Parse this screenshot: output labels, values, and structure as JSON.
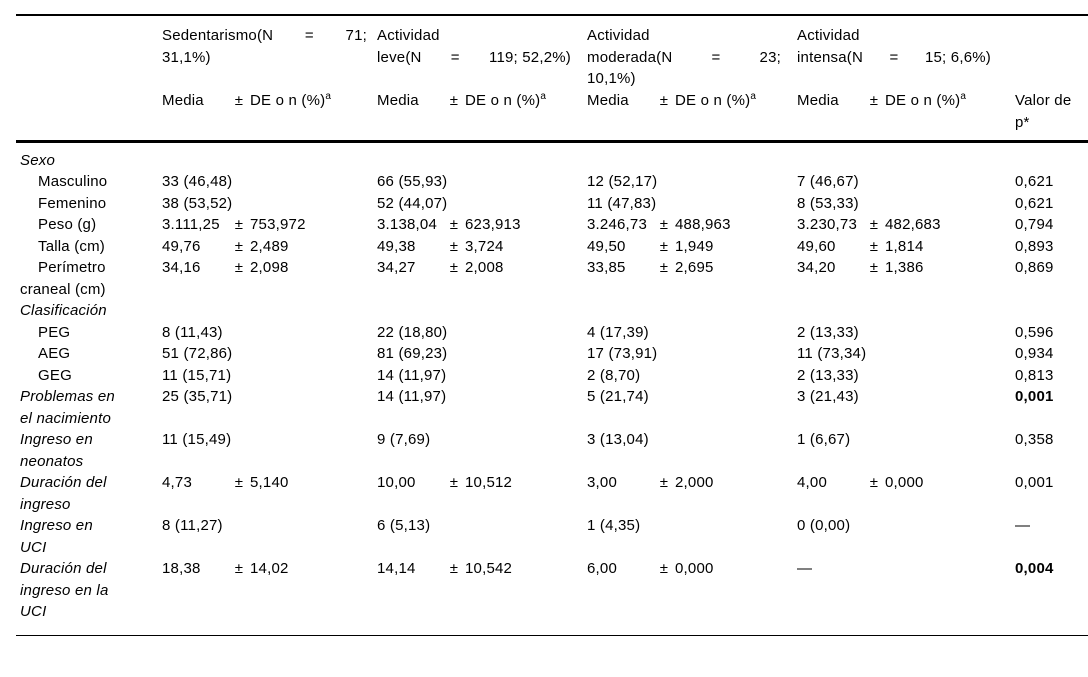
{
  "table": {
    "groups": [
      {
        "name": "sedentarismo",
        "lines": [
          [
            "Sedentarismo(N",
            "=",
            "71;"
          ],
          [
            "31,1%)"
          ]
        ]
      },
      {
        "name": "actividad-leve",
        "lines": [
          [
            "Actividad"
          ],
          [
            "leve(N",
            "=",
            "119; 52,2%)"
          ]
        ]
      },
      {
        "name": "actividad-moderada",
        "lines": [
          [
            "Actividad"
          ],
          [
            "moderada(N",
            "=",
            "23;"
          ],
          [
            "10,1%)"
          ]
        ]
      },
      {
        "name": "actividad-intensa",
        "lines": [
          [
            "Actividad"
          ],
          [
            "intensa(N",
            "=",
            "15; 6,6%)"
          ]
        ]
      }
    ],
    "measure_header": {
      "mean": "Media",
      "pm": "±",
      "rest": "DE o n (%)",
      "sup": "a"
    },
    "p_header": {
      "line1": "Valor de",
      "line2": "p*"
    },
    "rows": [
      {
        "type": "section",
        "label": "Sexo"
      },
      {
        "type": "data",
        "label": "Masculino",
        "indent": true,
        "cells": [
          {
            "n": "33 (46,48)"
          },
          {
            "n": "66 (55,93)"
          },
          {
            "n": "12 (52,17)"
          },
          {
            "n": "7 (46,67)"
          }
        ],
        "p": "0,621"
      },
      {
        "type": "data",
        "label": "Femenino",
        "indent": true,
        "cells": [
          {
            "n": "38 (53,52)"
          },
          {
            "n": "52 (44,07)"
          },
          {
            "n": "11 (47,83)"
          },
          {
            "n": "8 (53,33)"
          }
        ],
        "p": "0,621"
      },
      {
        "type": "data",
        "label": "Peso (g)",
        "indent": true,
        "cells": [
          {
            "mean": "3.111,25",
            "sd": "753,972"
          },
          {
            "mean": "3.138,04",
            "sd": "623,913"
          },
          {
            "mean": "3.246,73",
            "sd": "488,963"
          },
          {
            "mean": "3.230,73",
            "sd": "482,683"
          }
        ],
        "p": "0,794"
      },
      {
        "type": "data",
        "label": "Talla (cm)",
        "indent": true,
        "cells": [
          {
            "mean": "49,76",
            "sd": "2,489"
          },
          {
            "mean": "49,38",
            "sd": "3,724"
          },
          {
            "mean": "49,50",
            "sd": "1,949"
          },
          {
            "mean": "49,60",
            "sd": "1,814"
          }
        ],
        "p": "0,893"
      },
      {
        "type": "data",
        "label": "Perímetro craneal (cm)",
        "indent": true,
        "cells": [
          {
            "mean": "34,16",
            "sd": "2,098"
          },
          {
            "mean": "34,27",
            "sd": "2,008"
          },
          {
            "mean": "33,85",
            "sd": "2,695"
          },
          {
            "mean": "34,20",
            "sd": "1,386"
          }
        ],
        "p": "0,869"
      },
      {
        "type": "section",
        "label": "Clasificación"
      },
      {
        "type": "data",
        "label": "PEG",
        "indent": true,
        "cells": [
          {
            "n": "8 (11,43)"
          },
          {
            "n": "22 (18,80)"
          },
          {
            "n": "4 (17,39)"
          },
          {
            "n": "2 (13,33)"
          }
        ],
        "p": "0,596"
      },
      {
        "type": "data",
        "label": "AEG",
        "indent": true,
        "cells": [
          {
            "n": "51 (72,86)"
          },
          {
            "n": "81 (69,23)"
          },
          {
            "n": "17 (73,91)"
          },
          {
            "n": "11 (73,34)"
          }
        ],
        "p": "0,934"
      },
      {
        "type": "data",
        "label": "GEG",
        "indent": true,
        "cells": [
          {
            "n": "11 (15,71)"
          },
          {
            "n": "14 (11,97)"
          },
          {
            "n": "2 (8,70)"
          },
          {
            "n": "2 (13,33)"
          }
        ],
        "p": "0,813"
      },
      {
        "type": "data",
        "label": "Problemas en el nacimiento",
        "italic": true,
        "cells": [
          {
            "n": "25 (35,71)"
          },
          {
            "n": "14 (11,97)"
          },
          {
            "n": "5 (21,74)"
          },
          {
            "n": "3 (21,43)"
          }
        ],
        "p": "0,001",
        "p_bold": true
      },
      {
        "type": "data",
        "label": "Ingreso en neonatos",
        "italic": true,
        "cells": [
          {
            "n": "11 (15,49)"
          },
          {
            "n": "9 (7,69)"
          },
          {
            "n": "3 (13,04)"
          },
          {
            "n": "1 (6,67)"
          }
        ],
        "p": "0,358"
      },
      {
        "type": "data",
        "label": "Duración del ingreso",
        "italic": true,
        "cells": [
          {
            "mean": "4,73",
            "sd": "5,140"
          },
          {
            "mean": "10,00",
            "sd": "10,512"
          },
          {
            "mean": "3,00",
            "sd": "2,000"
          },
          {
            "mean": "4,00",
            "sd": "0,000"
          }
        ],
        "p": "0,001"
      },
      {
        "type": "data",
        "label": "Ingreso en UCI",
        "italic": true,
        "cells": [
          {
            "n": "8 (11,27)"
          },
          {
            "n": "6 (5,13)"
          },
          {
            "n": "1 (4,35)"
          },
          {
            "n": "0 (0,00)"
          }
        ],
        "p": "—"
      },
      {
        "type": "data",
        "label": "Duración del ingreso en la UCI",
        "italic": true,
        "cells": [
          {
            "mean": "18,38",
            "sd": "14,02"
          },
          {
            "mean": "14,14",
            "sd": "10,542"
          },
          {
            "mean": "6,00",
            "sd": "0,000"
          },
          {
            "dash": "—"
          }
        ],
        "p": "0,004",
        "p_bold": true
      }
    ]
  }
}
